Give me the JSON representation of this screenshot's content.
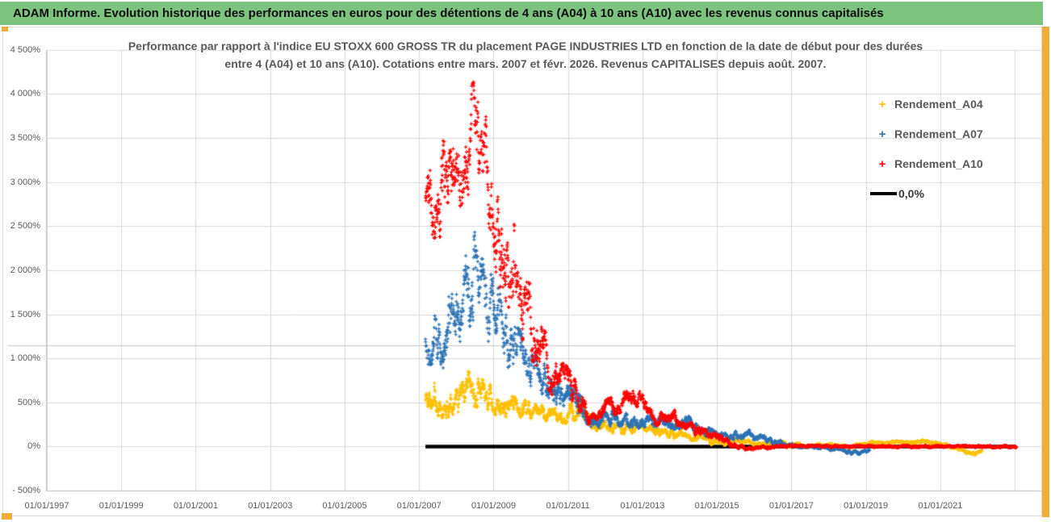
{
  "header": {
    "title": "ADAM Informe. Evolution historique des performances en euros pour des détentions de 4 ans (A04) à 10 ans (A10) avec les revenus connus capitalisés"
  },
  "colors": {
    "header_bg": "#7CC47E",
    "accent_orange": "#EFAE3C",
    "gridline": "#D9D9D9",
    "axis_line": "#BFBFBF",
    "axis_text": "#595959",
    "series_a04": "#FFC000",
    "series_a07": "#2E74B5",
    "series_a10": "#FF0000",
    "zero_line": "#000000"
  },
  "chart_data": {
    "type": "scatter",
    "title_line1": "Performance par rapport à l'indice EU STOXX 600 GROSS TR  du placement PAGE INDUSTRIES LTD en fonction de la date de début pour des durées",
    "title_line2": "entre 4 (A04) et 10 ans (A10). Cotations entre mars. 2007 et févr. 2026. Revenus CAPITALISES depuis août. 2007.",
    "x_axis": {
      "tick_labels": [
        "01/01/1997",
        "01/01/1999",
        "01/01/2001",
        "01/01/2003",
        "01/01/2005",
        "01/01/2007",
        "01/01/2009",
        "01/01/2011",
        "01/01/2013",
        "01/01/2015",
        "01/01/2017",
        "01/01/2019",
        "01/01/2021"
      ],
      "tick_years": [
        1997,
        1999,
        2001,
        2003,
        2005,
        2007,
        2009,
        2011,
        2013,
        2015,
        2017,
        2019,
        2021
      ],
      "gridline_years": [
        1997,
        1999,
        2001,
        2003,
        2005,
        2007,
        2009,
        2011,
        2013,
        2015,
        2017,
        2019,
        2021,
        2023
      ],
      "min_year": 1997,
      "max_year": 2023.7
    },
    "y_axis": {
      "tick_labels": [
        "4 500%",
        "4 000%",
        "3 500%",
        "3 000%",
        "2 500%",
        "2 000%",
        "1 500%",
        "1 000%",
        "500%",
        "0%",
        "- 500%"
      ],
      "tick_values": [
        4500,
        4000,
        3500,
        3000,
        2500,
        2000,
        1500,
        1000,
        500,
        0,
        -500
      ],
      "min": -500,
      "max": 4500,
      "step": 500
    },
    "zero_line": {
      "label": "0,0%",
      "y_value": 0,
      "x_start_year": 2007.17,
      "x_end_year": 2023.03
    },
    "series": [
      {
        "name": "Rendement_A04",
        "color": "#FFC000",
        "marker": "plus",
        "points_per_year": 200,
        "seed": 11,
        "envelope": [
          [
            2007.17,
            520,
            170
          ],
          [
            2007.45,
            560,
            175
          ],
          [
            2007.7,
            500,
            160
          ],
          [
            2007.95,
            565,
            165
          ],
          [
            2008.2,
            620,
            175
          ],
          [
            2008.45,
            670,
            180
          ],
          [
            2008.65,
            620,
            165
          ],
          [
            2008.9,
            540,
            145
          ],
          [
            2009.2,
            490,
            125
          ],
          [
            2009.5,
            445,
            110
          ],
          [
            2009.8,
            410,
            100
          ],
          [
            2010.1,
            380,
            92
          ],
          [
            2010.4,
            350,
            88
          ],
          [
            2010.7,
            330,
            85
          ],
          [
            2011.0,
            375,
            88
          ],
          [
            2011.25,
            410,
            88
          ],
          [
            2011.55,
            330,
            80
          ],
          [
            2011.85,
            225,
            70
          ],
          [
            2012.2,
            180,
            60
          ],
          [
            2012.5,
            210,
            65
          ],
          [
            2012.8,
            195,
            60
          ],
          [
            2013.1,
            200,
            58
          ],
          [
            2013.4,
            155,
            52
          ],
          [
            2013.7,
            125,
            46
          ],
          [
            2014.0,
            145,
            45
          ],
          [
            2014.3,
            120,
            40
          ],
          [
            2014.6,
            85,
            36
          ],
          [
            2014.9,
            55,
            32
          ],
          [
            2015.2,
            42,
            28
          ],
          [
            2015.5,
            62,
            30
          ],
          [
            2015.8,
            42,
            27
          ],
          [
            2016.1,
            22,
            25
          ],
          [
            2016.5,
            42,
            25
          ],
          [
            2016.9,
            22,
            22
          ],
          [
            2017.3,
            12,
            20
          ],
          [
            2017.7,
            32,
            22
          ],
          [
            2018.1,
            22,
            20
          ],
          [
            2018.5,
            -8,
            20
          ],
          [
            2018.9,
            22,
            20
          ],
          [
            2019.3,
            42,
            22
          ],
          [
            2019.7,
            52,
            22
          ],
          [
            2020.1,
            32,
            20
          ],
          [
            2020.5,
            52,
            22
          ],
          [
            2020.9,
            22,
            20
          ],
          [
            2021.3,
            2,
            18
          ],
          [
            2021.65,
            -55,
            20
          ],
          [
            2021.85,
            -90,
            20
          ],
          [
            2022.12,
            -55,
            16
          ]
        ]
      },
      {
        "name": "Rendement_A07",
        "color": "#2E74B5",
        "marker": "plus",
        "points_per_year": 200,
        "seed": 22,
        "envelope": [
          [
            2007.17,
            1250,
            300
          ],
          [
            2007.45,
            1320,
            320
          ],
          [
            2007.7,
            1220,
            300
          ],
          [
            2007.95,
            1500,
            350
          ],
          [
            2008.2,
            1700,
            400
          ],
          [
            2008.45,
            1950,
            450
          ],
          [
            2008.6,
            1850,
            430
          ],
          [
            2008.8,
            1600,
            400
          ],
          [
            2009.05,
            1450,
            350
          ],
          [
            2009.35,
            1280,
            310
          ],
          [
            2009.65,
            1050,
            260
          ],
          [
            2009.95,
            900,
            220
          ],
          [
            2010.25,
            780,
            190
          ],
          [
            2010.55,
            660,
            160
          ],
          [
            2010.8,
            600,
            140
          ],
          [
            2011.1,
            620,
            130
          ],
          [
            2011.4,
            430,
            110
          ],
          [
            2011.7,
            260,
            80
          ],
          [
            2012.0,
            300,
            80
          ],
          [
            2012.35,
            330,
            80
          ],
          [
            2012.7,
            300,
            70
          ],
          [
            2013.0,
            280,
            65
          ],
          [
            2013.4,
            305,
            70
          ],
          [
            2013.8,
            265,
            60
          ],
          [
            2014.2,
            280,
            60
          ],
          [
            2014.6,
            185,
            52
          ],
          [
            2015.0,
            115,
            45
          ],
          [
            2015.3,
            90,
            40
          ],
          [
            2015.55,
            125,
            45
          ],
          [
            2015.75,
            160,
            48
          ],
          [
            2016.0,
            120,
            42
          ],
          [
            2016.3,
            75,
            34
          ],
          [
            2016.6,
            45,
            28
          ],
          [
            2016.95,
            25,
            22
          ],
          [
            2017.35,
            8,
            18
          ],
          [
            2017.75,
            -8,
            16
          ],
          [
            2018.15,
            -28,
            16
          ],
          [
            2018.5,
            -58,
            18
          ],
          [
            2018.8,
            -75,
            18
          ],
          [
            2019.1,
            -45,
            14
          ]
        ]
      },
      {
        "name": "Rendement_A10",
        "color": "#FF0000",
        "marker": "plus",
        "points_per_year": 200,
        "seed": 33,
        "envelope": [
          [
            2007.17,
            2750,
            350
          ],
          [
            2007.4,
            2850,
            420
          ],
          [
            2007.6,
            2900,
            450
          ],
          [
            2007.85,
            3150,
            480
          ],
          [
            2008.1,
            3300,
            500
          ],
          [
            2008.35,
            3450,
            500
          ],
          [
            2008.5,
            3600,
            500
          ],
          [
            2008.7,
            3350,
            500
          ],
          [
            2008.95,
            2800,
            560
          ],
          [
            2009.2,
            2400,
            550
          ],
          [
            2009.5,
            2050,
            480
          ],
          [
            2009.8,
            1650,
            400
          ],
          [
            2010.1,
            1300,
            320
          ],
          [
            2010.4,
            1000,
            250
          ],
          [
            2010.7,
            700,
            180
          ],
          [
            2010.9,
            720,
            200
          ],
          [
            2011.15,
            650,
            120
          ],
          [
            2011.4,
            450,
            100
          ],
          [
            2011.65,
            270,
            80
          ],
          [
            2012.0,
            430,
            90
          ],
          [
            2012.3,
            470,
            90
          ],
          [
            2012.55,
            530,
            100
          ],
          [
            2012.75,
            630,
            110
          ],
          [
            2012.95,
            520,
            100
          ],
          [
            2013.15,
            340,
            80
          ],
          [
            2013.45,
            330,
            75
          ],
          [
            2013.7,
            390,
            80
          ],
          [
            2013.95,
            300,
            70
          ],
          [
            2014.3,
            200,
            60
          ],
          [
            2014.7,
            130,
            50
          ],
          [
            2015.05,
            85,
            40
          ],
          [
            2015.35,
            40,
            30
          ],
          [
            2015.6,
            5,
            25
          ],
          [
            2015.85,
            -35,
            20
          ],
          [
            2016.2,
            -18,
            16
          ],
          [
            2016.6,
            6,
            13
          ],
          [
            2017.0,
            4,
            11
          ],
          [
            2018.0,
            2,
            10
          ],
          [
            2019.0,
            0,
            9
          ],
          [
            2020.0,
            0,
            9
          ],
          [
            2021.0,
            0,
            9
          ],
          [
            2022.0,
            0,
            9
          ],
          [
            2023.05,
            0,
            9
          ]
        ]
      }
    ],
    "legend_position": "right-top",
    "grid": true
  }
}
